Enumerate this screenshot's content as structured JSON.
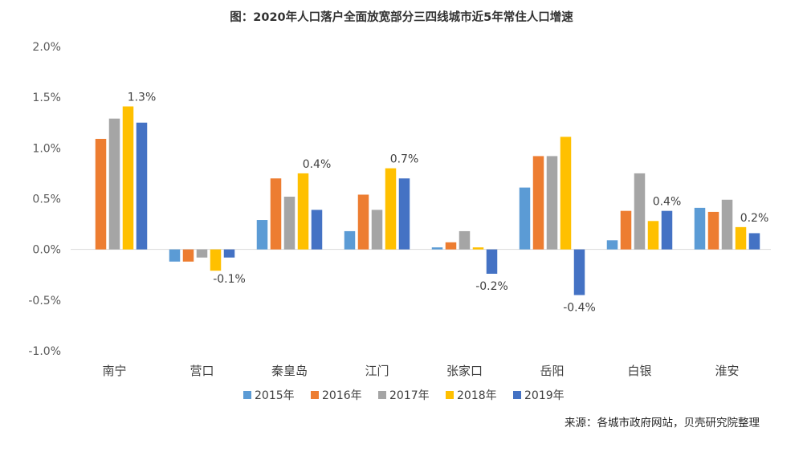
{
  "chart_data": {
    "type": "bar",
    "title": "图：2020年人口落户全面放宽部分三四线城市近5年常住人口增速",
    "source": "来源：各城市政府网站，贝壳研究院整理",
    "categories": [
      "南宁",
      "营口",
      "秦皇岛",
      "江门",
      "张家口",
      "岳阳",
      "白银",
      "淮安"
    ],
    "ylim": [
      -1.0,
      2.0
    ],
    "yticks": [
      "2.0%",
      "1.5%",
      "1.0%",
      "0.5%",
      "0.0%",
      "-0.5%",
      "-1.0%"
    ],
    "ytick_values": [
      2.0,
      1.5,
      1.0,
      0.5,
      0.0,
      -0.5,
      -1.0
    ],
    "legend_position": "bottom",
    "series": [
      {
        "name": "2015年",
        "color": "#5B9BD5",
        "values": [
          null,
          -0.12,
          0.29,
          0.18,
          0.02,
          0.61,
          0.09,
          0.41
        ]
      },
      {
        "name": "2016年",
        "color": "#ED7D31",
        "values": [
          1.09,
          -0.12,
          0.7,
          0.54,
          0.07,
          0.92,
          0.38,
          0.37
        ]
      },
      {
        "name": "2017年",
        "color": "#A5A5A5",
        "values": [
          1.29,
          -0.08,
          0.52,
          0.39,
          0.18,
          0.92,
          0.75,
          0.49
        ]
      },
      {
        "name": "2018年",
        "color": "#FFC000",
        "values": [
          1.41,
          -0.21,
          0.75,
          0.8,
          0.02,
          1.11,
          0.28,
          0.22
        ]
      },
      {
        "name": "2019年",
        "color": "#4472C4",
        "values": [
          1.25,
          -0.08,
          0.39,
          0.7,
          -0.24,
          -0.45,
          0.38,
          0.16
        ]
      }
    ],
    "data_labels": [
      {
        "category_index": 0,
        "text": "1.3%"
      },
      {
        "category_index": 1,
        "text": "-0.1%"
      },
      {
        "category_index": 2,
        "text": "0.4%"
      },
      {
        "category_index": 3,
        "text": "0.7%"
      },
      {
        "category_index": 4,
        "text": "-0.2%"
      },
      {
        "category_index": 5,
        "text": "-0.4%"
      },
      {
        "category_index": 6,
        "text": "0.4%"
      },
      {
        "category_index": 7,
        "text": "0.2%"
      }
    ]
  }
}
